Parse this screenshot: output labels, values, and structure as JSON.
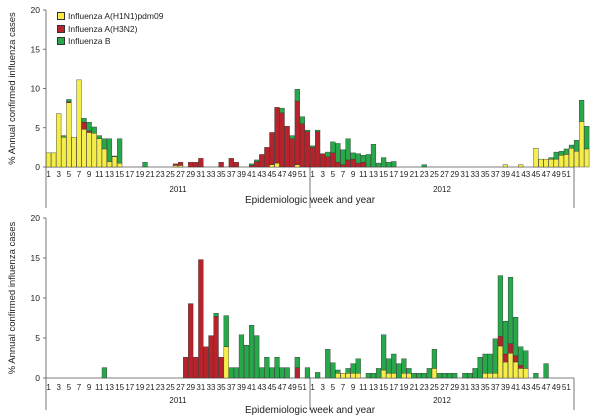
{
  "colors": {
    "h1n1": "#f5ed4a",
    "h3n2": "#b7232a",
    "b": "#27a84a",
    "outline": "#333333",
    "axis": "#555555"
  },
  "legend": {
    "items": [
      {
        "key": "h1n1",
        "label": "Influenza A(H1N1)pdm09"
      },
      {
        "key": "h3n2",
        "label": "Influenza A(H3N2)"
      },
      {
        "key": "b",
        "label": "Influenza B"
      }
    ]
  },
  "chart_data": [
    {
      "type": "bar",
      "stacked": true,
      "ylabel": "% Annual confirmed influenza cases",
      "xlabel": "Epidemiologic week and year",
      "ylim": [
        0,
        20
      ],
      "yticks": [
        0,
        5,
        10,
        15,
        20
      ],
      "week_ticks": [
        "1",
        "3",
        "5",
        "7",
        "9",
        "11",
        "13",
        "15",
        "17",
        "19",
        "21",
        "23",
        "25",
        "27",
        "29",
        "31",
        "33",
        "35",
        "37",
        "39",
        "41",
        "43",
        "45",
        "47",
        "49",
        "51",
        "1",
        "3",
        "5",
        "7",
        "9",
        "11",
        "13",
        "15",
        "17",
        "19",
        "21",
        "23",
        "25",
        "27",
        "29",
        "31",
        "33",
        "35",
        "37",
        "39",
        "41",
        "43",
        "45",
        "47",
        "49",
        "51"
      ],
      "years": [
        "2011",
        "2012"
      ],
      "series_keys": [
        "h1n1",
        "h3n2",
        "b"
      ],
      "bars": [
        {
          "i": 0,
          "h1n1": 1.8
        },
        {
          "i": 1,
          "h1n1": 1.8
        },
        {
          "i": 2,
          "h1n1": 6.8
        },
        {
          "i": 3,
          "h1n1": 3.8,
          "b": 0.2
        },
        {
          "i": 4,
          "h1n1": 8.2,
          "h3n2": 0.1,
          "b": 0.3
        },
        {
          "i": 5,
          "h1n1": 3.8
        },
        {
          "i": 6,
          "h1n1": 11.1
        },
        {
          "i": 7,
          "h1n1": 4.8,
          "h3n2": 0.9,
          "b": 0.5
        },
        {
          "i": 8,
          "h1n1": 4.4,
          "h3n2": 0.2,
          "b": 1.1
        },
        {
          "i": 9,
          "h1n1": 4.3,
          "b": 0.8
        },
        {
          "i": 10,
          "h1n1": 3.6,
          "b": 0.4
        },
        {
          "i": 11,
          "h1n1": 2.3,
          "b": 1.3
        },
        {
          "i": 12,
          "h1n1": 0.7,
          "b": 2.9
        },
        {
          "i": 13,
          "h1n1": 1.3,
          "b": 0.1
        },
        {
          "i": 14,
          "h1n1": 0.5,
          "b": 3.1
        },
        {
          "i": 19,
          "b": 0.6
        },
        {
          "i": 25,
          "h1n1": 0.2,
          "h3n2": 0.2
        },
        {
          "i": 26,
          "h1n1": 0.2,
          "h3n2": 0.4
        },
        {
          "i": 28,
          "h3n2": 0.6
        },
        {
          "i": 29,
          "h3n2": 0.6
        },
        {
          "i": 30,
          "h3n2": 1.1
        },
        {
          "i": 34,
          "h3n2": 0.6
        },
        {
          "i": 36,
          "h3n2": 1.1
        },
        {
          "i": 37,
          "h3n2": 0.6
        },
        {
          "i": 40,
          "h3n2": 0.2,
          "b": 0.2
        },
        {
          "i": 41,
          "h3n2": 0.7,
          "b": 0.2
        },
        {
          "i": 42,
          "h3n2": 1.6
        },
        {
          "i": 43,
          "h3n2": 2.5
        },
        {
          "i": 44,
          "h1n1": 0.3,
          "h3n2": 4.1
        },
        {
          "i": 45,
          "h1n1": 0.5,
          "h3n2": 7.1
        },
        {
          "i": 46,
          "h3n2": 6.9,
          "b": 0.6
        },
        {
          "i": 47,
          "h3n2": 5.2
        },
        {
          "i": 48,
          "h3n2": 3.6,
          "b": 0.4
        },
        {
          "i": 49,
          "h1n1": 0.3,
          "h3n2": 8.1,
          "b": 1.5
        },
        {
          "i": 50,
          "h3n2": 5.5,
          "b": 0.9
        },
        {
          "i": 51,
          "h3n2": 4.5,
          "b": 0.2
        },
        {
          "i": 52,
          "h3n2": 2.5,
          "b": 0.2
        },
        {
          "i": 53,
          "h3n2": 4.5,
          "b": 0.2
        },
        {
          "i": 54,
          "h3n2": 1.7
        },
        {
          "i": 55,
          "h3n2": 1.3,
          "b": 0.6
        },
        {
          "i": 56,
          "h3n2": 1.8,
          "b": 1.4
        },
        {
          "i": 57,
          "h3n2": 0.6,
          "b": 2.4
        },
        {
          "i": 58,
          "h3n2": 0.3,
          "b": 1.9
        },
        {
          "i": 59,
          "h3n2": 0.9,
          "b": 2.7
        },
        {
          "i": 60,
          "h3n2": 1.0,
          "b": 0.8
        },
        {
          "i": 61,
          "h3n2": 0.5,
          "b": 1.2
        },
        {
          "i": 62,
          "h3n2": 0.6,
          "b": 0.9
        },
        {
          "i": 63,
          "b": 1.6
        },
        {
          "i": 64,
          "b": 2.9
        },
        {
          "i": 65,
          "b": 0.5
        },
        {
          "i": 66,
          "b": 1.2
        },
        {
          "i": 67,
          "b": 0.6
        },
        {
          "i": 68,
          "b": 0.7
        },
        {
          "i": 74,
          "b": 0.3
        },
        {
          "i": 90,
          "h1n1": 0.3
        },
        {
          "i": 93,
          "h1n1": 0.3
        },
        {
          "i": 96,
          "h1n1": 2.4
        },
        {
          "i": 97,
          "h1n1": 1.0
        },
        {
          "i": 98,
          "h1n1": 1.0
        },
        {
          "i": 99,
          "h1n1": 1.0,
          "b": 0.2
        },
        {
          "i": 100,
          "h1n1": 1.0,
          "b": 0.9
        },
        {
          "i": 101,
          "h1n1": 1.5,
          "b": 0.5
        },
        {
          "i": 102,
          "h1n1": 1.6,
          "b": 0.7
        },
        {
          "i": 103,
          "h1n1": 2.4,
          "b": 0.4
        },
        {
          "i": 104,
          "h1n1": 2.0,
          "b": 1.4
        },
        {
          "i": 105,
          "h1n1": 5.8,
          "b": 2.7
        },
        {
          "i": 106,
          "h1n1": 2.3,
          "b": 2.9
        }
      ]
    },
    {
      "type": "bar",
      "stacked": true,
      "ylabel": "% Annual confirmed influenza cases",
      "xlabel": "Epidemiologic week and year",
      "ylim": [
        0,
        20
      ],
      "yticks": [
        0,
        5,
        10,
        15,
        20
      ],
      "week_ticks": [
        "1",
        "3",
        "5",
        "7",
        "9",
        "11",
        "13",
        "15",
        "17",
        "19",
        "21",
        "23",
        "25",
        "27",
        "29",
        "31",
        "33",
        "35",
        "37",
        "39",
        "41",
        "43",
        "45",
        "47",
        "49",
        "51",
        "1",
        "3",
        "5",
        "7",
        "9",
        "11",
        "13",
        "15",
        "17",
        "19",
        "21",
        "23",
        "25",
        "27",
        "29",
        "31",
        "33",
        "35",
        "37",
        "39",
        "41",
        "43",
        "45",
        "47",
        "49",
        "51"
      ],
      "years": [
        "2011",
        "2012"
      ],
      "series_keys": [
        "h1n1",
        "h3n2",
        "b"
      ],
      "bars": [
        {
          "i": 11,
          "b": 1.3
        },
        {
          "i": 27,
          "h3n2": 2.6
        },
        {
          "i": 28,
          "h3n2": 9.3
        },
        {
          "i": 29,
          "h3n2": 2.6
        },
        {
          "i": 30,
          "h3n2": 14.8
        },
        {
          "i": 31,
          "h3n2": 3.9
        },
        {
          "i": 32,
          "h3n2": 5.3
        },
        {
          "i": 33,
          "h3n2": 7.7,
          "b": 0.4
        },
        {
          "i": 34,
          "h3n2": 2.6
        },
        {
          "i": 35,
          "h1n1": 3.9,
          "b": 3.9
        },
        {
          "i": 36,
          "b": 1.3
        },
        {
          "i": 37,
          "b": 1.3
        },
        {
          "i": 38,
          "b": 5.4
        },
        {
          "i": 39,
          "b": 4.1
        },
        {
          "i": 40,
          "b": 6.6
        },
        {
          "i": 41,
          "b": 5.3
        },
        {
          "i": 42,
          "b": 1.3
        },
        {
          "i": 43,
          "b": 2.6
        },
        {
          "i": 44,
          "b": 1.3
        },
        {
          "i": 45,
          "b": 2.6
        },
        {
          "i": 46,
          "b": 1.3
        },
        {
          "i": 47,
          "b": 1.3
        },
        {
          "i": 49,
          "h3n2": 1.3,
          "b": 1.3
        },
        {
          "i": 51,
          "b": 1.3
        },
        {
          "i": 53,
          "b": 0.7
        },
        {
          "i": 55,
          "b": 3.6
        },
        {
          "i": 56,
          "b": 1.9
        },
        {
          "i": 57,
          "h1n1": 0.6,
          "b": 0.4
        },
        {
          "i": 58,
          "h1n1": 0.6
        },
        {
          "i": 59,
          "h1n1": 0.6,
          "b": 0.6
        },
        {
          "i": 60,
          "h1n1": 0.6,
          "b": 1.2
        },
        {
          "i": 61,
          "h1n1": 0.6,
          "b": 1.8
        },
        {
          "i": 63,
          "b": 0.6
        },
        {
          "i": 64,
          "b": 0.6
        },
        {
          "i": 65,
          "b": 1.2
        },
        {
          "i": 66,
          "h1n1": 1.0,
          "b": 4.4
        },
        {
          "i": 67,
          "h1n1": 0.6,
          "b": 1.8
        },
        {
          "i": 68,
          "h1n1": 0.6,
          "b": 2.4
        },
        {
          "i": 69,
          "b": 1.8
        },
        {
          "i": 70,
          "h1n1": 0.6,
          "b": 1.8
        },
        {
          "i": 71,
          "h1n1": 0.6,
          "b": 0.6
        },
        {
          "i": 72,
          "b": 0.6
        },
        {
          "i": 73,
          "b": 0.6
        },
        {
          "i": 74,
          "b": 0.6
        },
        {
          "i": 75,
          "b": 1.2
        },
        {
          "i": 76,
          "h1n1": 1.2,
          "b": 2.4
        },
        {
          "i": 77,
          "b": 0.6
        },
        {
          "i": 78,
          "b": 0.6
        },
        {
          "i": 79,
          "b": 0.6
        },
        {
          "i": 80,
          "b": 0.6
        },
        {
          "i": 82,
          "b": 0.6
        },
        {
          "i": 83,
          "b": 0.6
        },
        {
          "i": 84,
          "b": 1.2
        },
        {
          "i": 85,
          "b": 2.6
        },
        {
          "i": 86,
          "h1n1": 0.6,
          "b": 2.4
        },
        {
          "i": 87,
          "h1n1": 0.6,
          "b": 2.4
        },
        {
          "i": 88,
          "h1n1": 0.6,
          "b": 4.3
        },
        {
          "i": 89,
          "h1n1": 4.0,
          "h3n2": 1.2,
          "b": 7.6
        },
        {
          "i": 90,
          "h1n1": 2.0,
          "h3n2": 1.0,
          "b": 4.1
        },
        {
          "i": 91,
          "h1n1": 3.1,
          "h3n2": 1.2,
          "b": 8.3
        },
        {
          "i": 92,
          "h1n1": 2.0,
          "h3n2": 0.8,
          "b": 4.8
        },
        {
          "i": 93,
          "h1n1": 1.2,
          "h3n2": 0.4,
          "b": 2.3
        },
        {
          "i": 94,
          "h1n1": 1.2,
          "b": 2.2
        },
        {
          "i": 96,
          "b": 0.6
        },
        {
          "i": 98,
          "b": 1.8
        }
      ]
    }
  ]
}
